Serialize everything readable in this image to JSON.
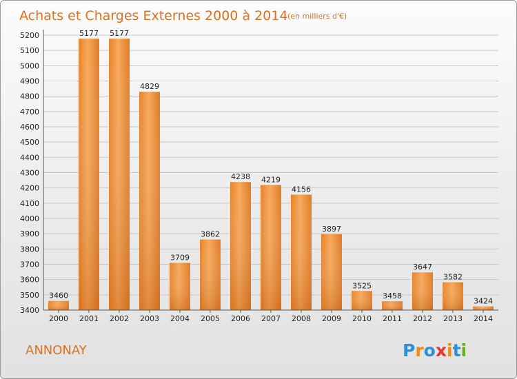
{
  "title": "Achats et Charges Externes 2000 à 2014",
  "subtitle": "(en milliers d'€)",
  "place": "ANNONAY",
  "logo": "Proxiti",
  "colors": {
    "bar": "#f39a45",
    "bar_dark": "#dc7a22",
    "title": "#e0701b",
    "grid": "#c8c8c8",
    "axis": "#555555"
  },
  "chart_data": {
    "type": "bar",
    "categories": [
      "2000",
      "2001",
      "2002",
      "2003",
      "2004",
      "2005",
      "2006",
      "2007",
      "2008",
      "2009",
      "2010",
      "2011",
      "2012",
      "2013",
      "2014"
    ],
    "values": [
      3460,
      5177,
      5177,
      4829,
      3709,
      3862,
      4238,
      4219,
      4156,
      3897,
      3525,
      3458,
      3647,
      3582,
      3424
    ],
    "ylim": [
      3400,
      5200
    ],
    "yticks": [
      3400,
      3500,
      3600,
      3700,
      3800,
      3900,
      4000,
      4100,
      4200,
      4300,
      4400,
      4500,
      4600,
      4700,
      4800,
      4900,
      5000,
      5100,
      5200
    ],
    "xlabel": "",
    "ylabel": "",
    "grid": true,
    "legend": "none"
  }
}
